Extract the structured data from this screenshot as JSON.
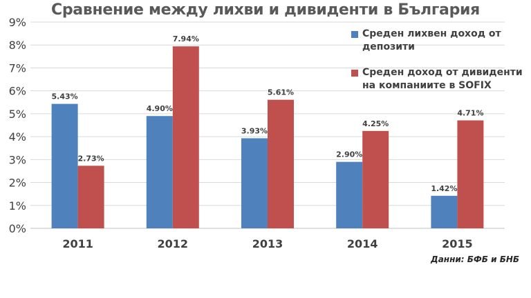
{
  "chart_data": {
    "type": "bar",
    "title": "Сравнение между лихви и дивиденти в България",
    "categories": [
      "2011",
      "2012",
      "2013",
      "2014",
      "2015"
    ],
    "series": [
      {
        "name": "Среден лихвен доход от депозити",
        "color": "#4F81BD",
        "values": [
          5.43,
          4.9,
          3.93,
          2.9,
          1.42
        ],
        "labels": [
          "5.43%",
          "4.90%",
          "3.93%",
          "2.90%",
          "1.42%"
        ]
      },
      {
        "name": "Среден доход от дивиденти на компаниите в SOFIX",
        "color": "#C0504D",
        "values": [
          2.73,
          7.94,
          5.61,
          4.25,
          4.71
        ],
        "labels": [
          "2.73%",
          "7.94%",
          "5.61%",
          "4.25%",
          "4.71%"
        ]
      }
    ],
    "ylim": [
      0,
      9
    ],
    "yticks": [
      "0%",
      "1%",
      "2%",
      "3%",
      "4%",
      "5%",
      "6%",
      "7%",
      "8%",
      "9%"
    ],
    "grid": true,
    "legend_position": "top-right",
    "source": "Данни: БФБ и БНБ"
  }
}
